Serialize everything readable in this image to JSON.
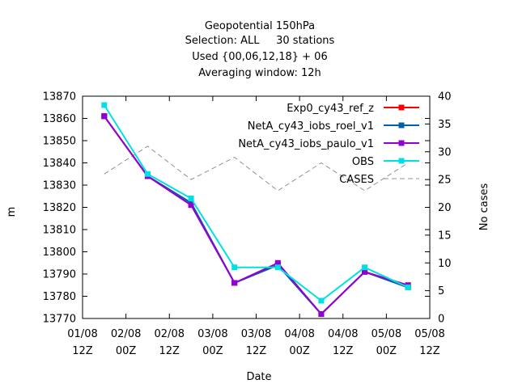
{
  "chart_data": {
    "type": "line",
    "title_lines": [
      "Geopotential 150hPa",
      "Selection: ALL     30 stations",
      "Used {00,06,12,18} + 06",
      "Averaging window: 12h"
    ],
    "xlabel": "Date",
    "ylabel": "m",
    "y2label": "No cases",
    "x_ticks": [
      {
        "x": 0,
        "line1": "01/08",
        "line2": "12Z"
      },
      {
        "x": 1,
        "line1": "02/08",
        "line2": "00Z"
      },
      {
        "x": 2,
        "line1": "02/08",
        "line2": "12Z"
      },
      {
        "x": 3,
        "line1": "03/08",
        "line2": "00Z"
      },
      {
        "x": 4,
        "line1": "03/08",
        "line2": "12Z"
      },
      {
        "x": 5,
        "line1": "04/08",
        "line2": "00Z"
      },
      {
        "x": 6,
        "line1": "04/08",
        "line2": "12Z"
      },
      {
        "x": 7,
        "line1": "05/08",
        "line2": "00Z"
      },
      {
        "x": 8,
        "line1": "05/08",
        "line2": "12Z"
      }
    ],
    "xlim": [
      0,
      8
    ],
    "ylim": [
      13770,
      13870
    ],
    "y_ticks": [
      13770,
      13780,
      13790,
      13800,
      13810,
      13820,
      13830,
      13840,
      13850,
      13860,
      13870
    ],
    "y2lim": [
      0,
      40
    ],
    "y2_ticks": [
      0,
      5,
      10,
      15,
      20,
      25,
      30,
      35,
      40
    ],
    "legend_position": "top-right",
    "x": [
      0.5,
      1.5,
      2.5,
      3.5,
      4.5,
      5.5,
      6.5,
      7.5
    ],
    "series": [
      {
        "name": "Exp0_cy43_ref_z",
        "color": "#ff0000",
        "axis": "y1",
        "style": "line-point",
        "values": [
          13861,
          13834,
          13822,
          13786,
          13794,
          13772,
          13791,
          13784
        ]
      },
      {
        "name": "NetA_cy43_iobs_roel_v1",
        "color": "#0060ad",
        "axis": "y1",
        "style": "line-point",
        "values": [
          13861,
          13834,
          13822,
          13786,
          13794,
          13772,
          13791,
          13784
        ]
      },
      {
        "name": "NetA_cy43_iobs_paulo_v1",
        "color": "#9400d3",
        "axis": "y1",
        "style": "line-point",
        "values": [
          13861,
          13834,
          13821,
          13786,
          13795,
          13772,
          13791,
          13785
        ]
      },
      {
        "name": "OBS",
        "color": "#00e0e0",
        "axis": "y1",
        "style": "line-point",
        "values": [
          13866,
          13835,
          13824,
          13793,
          13793,
          13778,
          13793,
          13784
        ]
      },
      {
        "name": "CASES",
        "color": "#909090",
        "axis": "y2",
        "style": "dashed",
        "values": [
          26,
          31,
          25,
          29,
          23,
          28,
          23,
          28
        ]
      }
    ]
  }
}
